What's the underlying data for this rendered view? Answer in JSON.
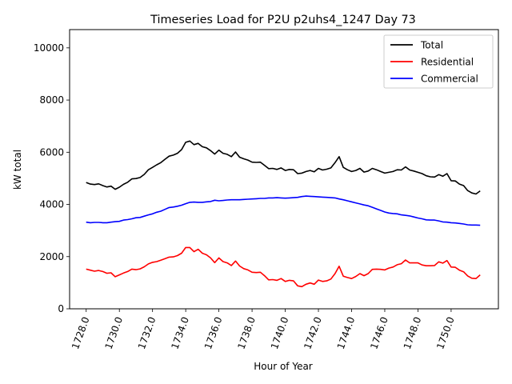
{
  "chart_data": {
    "type": "line",
    "title": "Timeseries Load for P2U p2uhs4_1247  Day 73",
    "xlabel": "Hour of Year",
    "ylabel": "kW total",
    "xlim": [
      1727.0,
      1752.85
    ],
    "ylim": [
      0,
      10700
    ],
    "xticks": [
      1728,
      1730,
      1732,
      1734,
      1736,
      1738,
      1740,
      1742,
      1744,
      1746,
      1748,
      1750
    ],
    "xtick_labels": [
      "1728.0",
      "1730.0",
      "1732.0",
      "1734.0",
      "1736.0",
      "1738.0",
      "1740.0",
      "1742.0",
      "1744.0",
      "1746.0",
      "1748.0",
      "1750.0"
    ],
    "yticks": [
      0,
      2000,
      4000,
      6000,
      8000,
      10000
    ],
    "ytick_labels": [
      "0",
      "2000",
      "4000",
      "6000",
      "8000",
      "10000"
    ],
    "legend_position": "top-right",
    "x_start": 1728.0,
    "x_step": 0.25,
    "series": [
      {
        "name": "Total",
        "color": "#000000",
        "values": [
          4840,
          4780,
          4760,
          4790,
          4720,
          4670,
          4700,
          4580,
          4660,
          4770,
          4850,
          4980,
          4990,
          5030,
          5150,
          5330,
          5420,
          5520,
          5600,
          5730,
          5850,
          5890,
          5960,
          6100,
          6380,
          6430,
          6290,
          6340,
          6210,
          6170,
          6060,
          5930,
          6080,
          5960,
          5920,
          5830,
          6010,
          5810,
          5750,
          5700,
          5620,
          5610,
          5620,
          5500,
          5370,
          5380,
          5340,
          5400,
          5300,
          5340,
          5330,
          5180,
          5200,
          5260,
          5300,
          5250,
          5380,
          5320,
          5350,
          5400,
          5600,
          5830,
          5420,
          5330,
          5260,
          5300,
          5380,
          5240,
          5280,
          5380,
          5330,
          5260,
          5200,
          5230,
          5260,
          5330,
          5320,
          5440,
          5320,
          5280,
          5230,
          5180,
          5100,
          5060,
          5050,
          5140,
          5080,
          5180,
          4910,
          4900,
          4780,
          4720,
          4530,
          4440,
          4400,
          4520
        ]
      },
      {
        "name": "Residential",
        "color": "#ff0000",
        "values": [
          1520,
          1480,
          1440,
          1470,
          1430,
          1360,
          1380,
          1230,
          1300,
          1370,
          1430,
          1520,
          1500,
          1530,
          1610,
          1720,
          1780,
          1810,
          1860,
          1920,
          1980,
          1990,
          2040,
          2130,
          2350,
          2350,
          2190,
          2280,
          2130,
          2070,
          1950,
          1770,
          1950,
          1810,
          1760,
          1660,
          1830,
          1640,
          1540,
          1490,
          1400,
          1390,
          1400,
          1270,
          1110,
          1120,
          1090,
          1160,
          1050,
          1090,
          1070,
          880,
          850,
          940,
          990,
          940,
          1100,
          1050,
          1070,
          1140,
          1350,
          1630,
          1250,
          1200,
          1160,
          1240,
          1350,
          1270,
          1350,
          1510,
          1520,
          1510,
          1490,
          1560,
          1600,
          1690,
          1730,
          1870,
          1760,
          1760,
          1760,
          1680,
          1650,
          1650,
          1660,
          1800,
          1750,
          1850,
          1600,
          1590,
          1480,
          1420,
          1260,
          1170,
          1160,
          1300
        ]
      },
      {
        "name": "Commercial",
        "color": "#0000ff",
        "values": [
          3320,
          3300,
          3310,
          3310,
          3300,
          3300,
          3320,
          3340,
          3350,
          3400,
          3420,
          3450,
          3490,
          3500,
          3550,
          3600,
          3640,
          3700,
          3740,
          3810,
          3880,
          3900,
          3930,
          3970,
          4030,
          4080,
          4090,
          4080,
          4080,
          4100,
          4110,
          4160,
          4140,
          4150,
          4170,
          4180,
          4180,
          4180,
          4190,
          4200,
          4210,
          4220,
          4230,
          4230,
          4250,
          4250,
          4260,
          4250,
          4240,
          4250,
          4260,
          4270,
          4300,
          4320,
          4310,
          4300,
          4290,
          4280,
          4270,
          4260,
          4250,
          4210,
          4180,
          4140,
          4100,
          4060,
          4020,
          3980,
          3950,
          3890,
          3830,
          3770,
          3710,
          3670,
          3650,
          3640,
          3600,
          3580,
          3560,
          3520,
          3480,
          3450,
          3410,
          3400,
          3400,
          3370,
          3330,
          3320,
          3300,
          3290,
          3270,
          3250,
          3220,
          3210,
          3210,
          3200
        ]
      }
    ]
  }
}
